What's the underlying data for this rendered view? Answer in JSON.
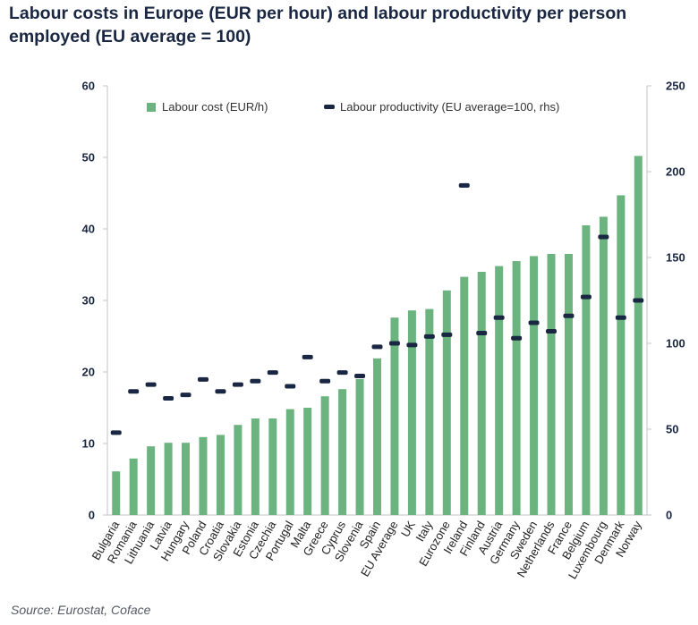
{
  "title": "Labour costs in Europe (EUR per hour) and labour productivity per person employed (EU average = 100)",
  "source": "Source: Eurostat, Coface",
  "colors": {
    "bar": "#6bb37f",
    "marker": "#1a2742",
    "axis": "#bfc3c8",
    "text": "#1a2742"
  },
  "chart_data": {
    "type": "bar",
    "title": "Labour costs in Europe (EUR per hour) and labour productivity per person employed (EU average = 100)",
    "categories": [
      "Bulgaria",
      "Romania",
      "Lithuania",
      "Latvia",
      "Hungary",
      "Poland",
      "Croatia",
      "Slovakia",
      "Estonia",
      "Czechia",
      "Portugal",
      "Malta",
      "Greece",
      "Cyprus",
      "Slovenia",
      "Spain",
      "EU Average",
      "UK",
      "Italy",
      "Eurozone",
      "Ireland",
      "Finland",
      "Austria",
      "Germany",
      "Sweden",
      "Netherlands",
      "France",
      "Belgium",
      "Luxembourg",
      "Denmark",
      "Norway"
    ],
    "series": [
      {
        "name": "Labour cost (EUR/h)",
        "axis": "left",
        "kind": "bar",
        "values": [
          6.1,
          7.9,
          9.6,
          10.1,
          10.1,
          10.9,
          11.2,
          12.6,
          13.5,
          13.5,
          14.8,
          15.0,
          16.6,
          17.6,
          19.0,
          21.9,
          27.6,
          28.6,
          28.8,
          31.4,
          33.3,
          34.0,
          34.8,
          35.5,
          36.2,
          36.5,
          36.5,
          40.5,
          41.7,
          44.7,
          50.2
        ]
      },
      {
        "name": "Labour productivity (EU average=100, rhs)",
        "axis": "right",
        "kind": "marker",
        "values": [
          48,
          72,
          76,
          68,
          70,
          79,
          72,
          76,
          78,
          83,
          75,
          92,
          78,
          83,
          81,
          98,
          100,
          99,
          104,
          105,
          192,
          106,
          115,
          103,
          112,
          107,
          116,
          127,
          162,
          115,
          125
        ]
      }
    ],
    "ylim_left": [
      0,
      60
    ],
    "yticks_left": [
      "0",
      "10",
      "20",
      "30",
      "40",
      "50",
      "60"
    ],
    "ylim_right": [
      0,
      250
    ],
    "yticks_right": [
      "0",
      "50",
      "100",
      "150",
      "200",
      "250"
    ],
    "legend": [
      "Labour cost (EUR/h)",
      "Labour productivity (EU average=100, rhs)"
    ],
    "legend_position": "top",
    "grid": false
  }
}
